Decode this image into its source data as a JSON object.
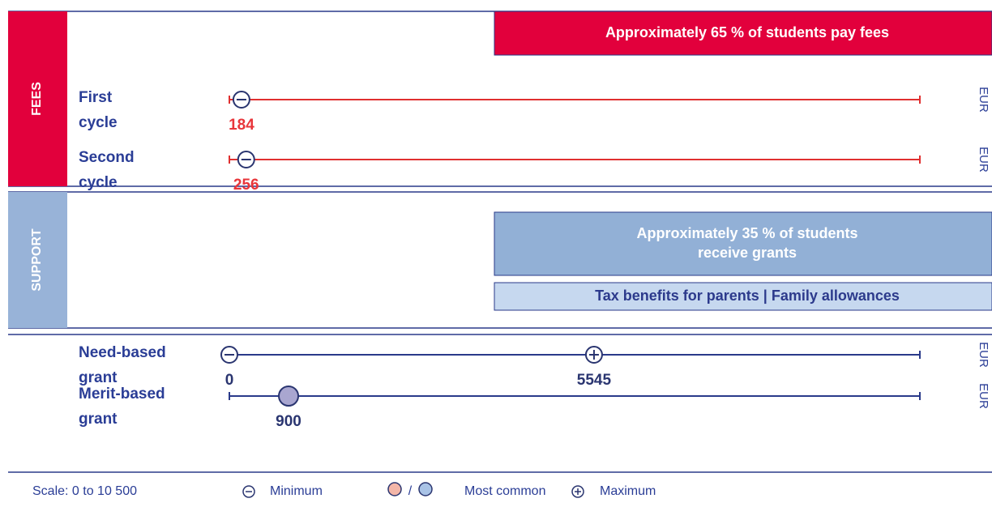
{
  "sections": [
    {
      "label": "FEES",
      "color": "#e2003c",
      "banners": [
        {
          "lines": [
            "Approximately 65 % of students pay fees"
          ],
          "color": "#e2003c",
          "text_color": "#ffffff"
        }
      ],
      "rows": [
        {
          "label": [
            "First",
            "cycle"
          ],
          "unit": "EUR",
          "markers": [
            {
              "kind": "minimum",
              "value": 184
            }
          ]
        },
        {
          "label": [
            "Second",
            "cycle"
          ],
          "unit": "EUR",
          "markers": [
            {
              "kind": "minimum",
              "value": 256
            }
          ]
        }
      ]
    },
    {
      "label": "SUPPORT",
      "color": "#98b3d8",
      "banners": [
        {
          "lines": [
            "Approximately 35 % of students",
            "receive grants"
          ],
          "color": "#92b0d6",
          "text_color": "#ffffff"
        },
        {
          "lines": [
            "Tax benefits for parents | Family allowances"
          ],
          "color": "#c6d8ef",
          "text_color": "#2c3a8c"
        }
      ],
      "rows": [
        {
          "label": [
            "Need-based",
            "grant"
          ],
          "unit": "EUR",
          "markers": [
            {
              "kind": "minimum",
              "value": 0
            },
            {
              "kind": "maximum",
              "value": 5545
            }
          ]
        },
        {
          "label": [
            "Merit-based",
            "grant"
          ],
          "unit": "EUR",
          "markers": [
            {
              "kind": "common",
              "value": 900
            }
          ]
        }
      ]
    }
  ],
  "scale": {
    "text": "Scale: 0 to 10 500",
    "min": 0,
    "max": 10500
  },
  "legend": [
    {
      "kind": "minimum",
      "label": "Minimum"
    },
    {
      "kind": "common",
      "label": "Most common",
      "separator": "/"
    },
    {
      "kind": "maximum",
      "label": "Maximum"
    }
  ]
}
